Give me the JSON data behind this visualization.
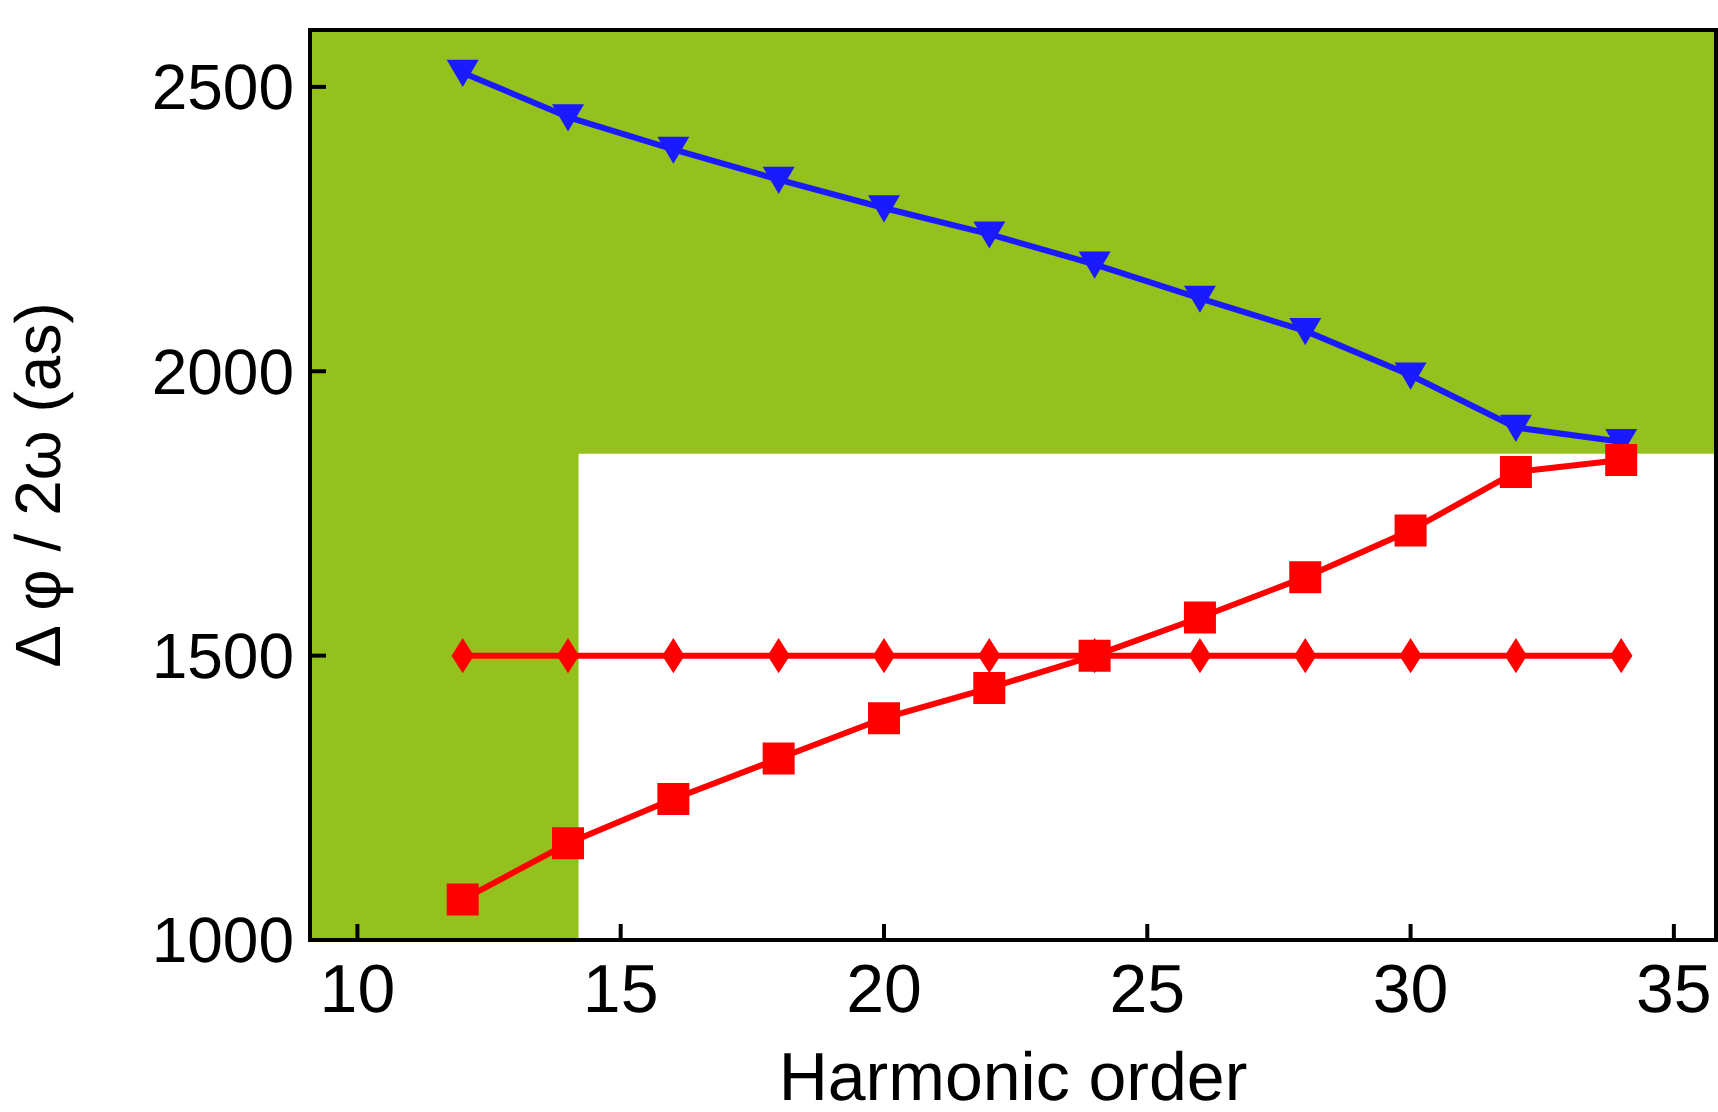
{
  "chart_data": {
    "type": "line",
    "xlabel": "Harmonic order",
    "ylabel": "Δ φ / 2ω (as)",
    "x": [
      12,
      14,
      16,
      18,
      20,
      22,
      24,
      26,
      28,
      30,
      32,
      34
    ],
    "series": [
      {
        "color": "#1a1aff",
        "marker": "triangle",
        "values": [
          2525,
          2447,
          2390,
          2337,
          2287,
          2241,
          2188,
          2128,
          2071,
          1993,
          1901,
          1876
        ]
      },
      {
        "color": "#ff0000",
        "marker": "square",
        "values": [
          1071,
          1170,
          1248,
          1319,
          1390,
          1443,
          1500,
          1567,
          1638,
          1720,
          1823,
          1844
        ]
      },
      {
        "color": "#ff0000",
        "marker": "diamond",
        "values": [
          1500,
          1500,
          1500,
          1500,
          1500,
          1500,
          1500,
          1500,
          1500,
          1500,
          1500,
          1500
        ]
      }
    ],
    "bands": [
      {
        "axis": "x",
        "from": 9.1,
        "to": 14.2,
        "color": "#95c11f"
      },
      {
        "axis": "y",
        "from": 1855,
        "to": 2600,
        "color": "#95c11f"
      }
    ],
    "xlim": [
      9.1,
      35.8
    ],
    "ylim": [
      1000,
      2600
    ],
    "xticks": [
      10,
      15,
      20,
      25,
      30,
      35
    ],
    "yticks": [
      1000,
      1500,
      2000,
      2500
    ],
    "grid": false,
    "line_style": "solid"
  }
}
